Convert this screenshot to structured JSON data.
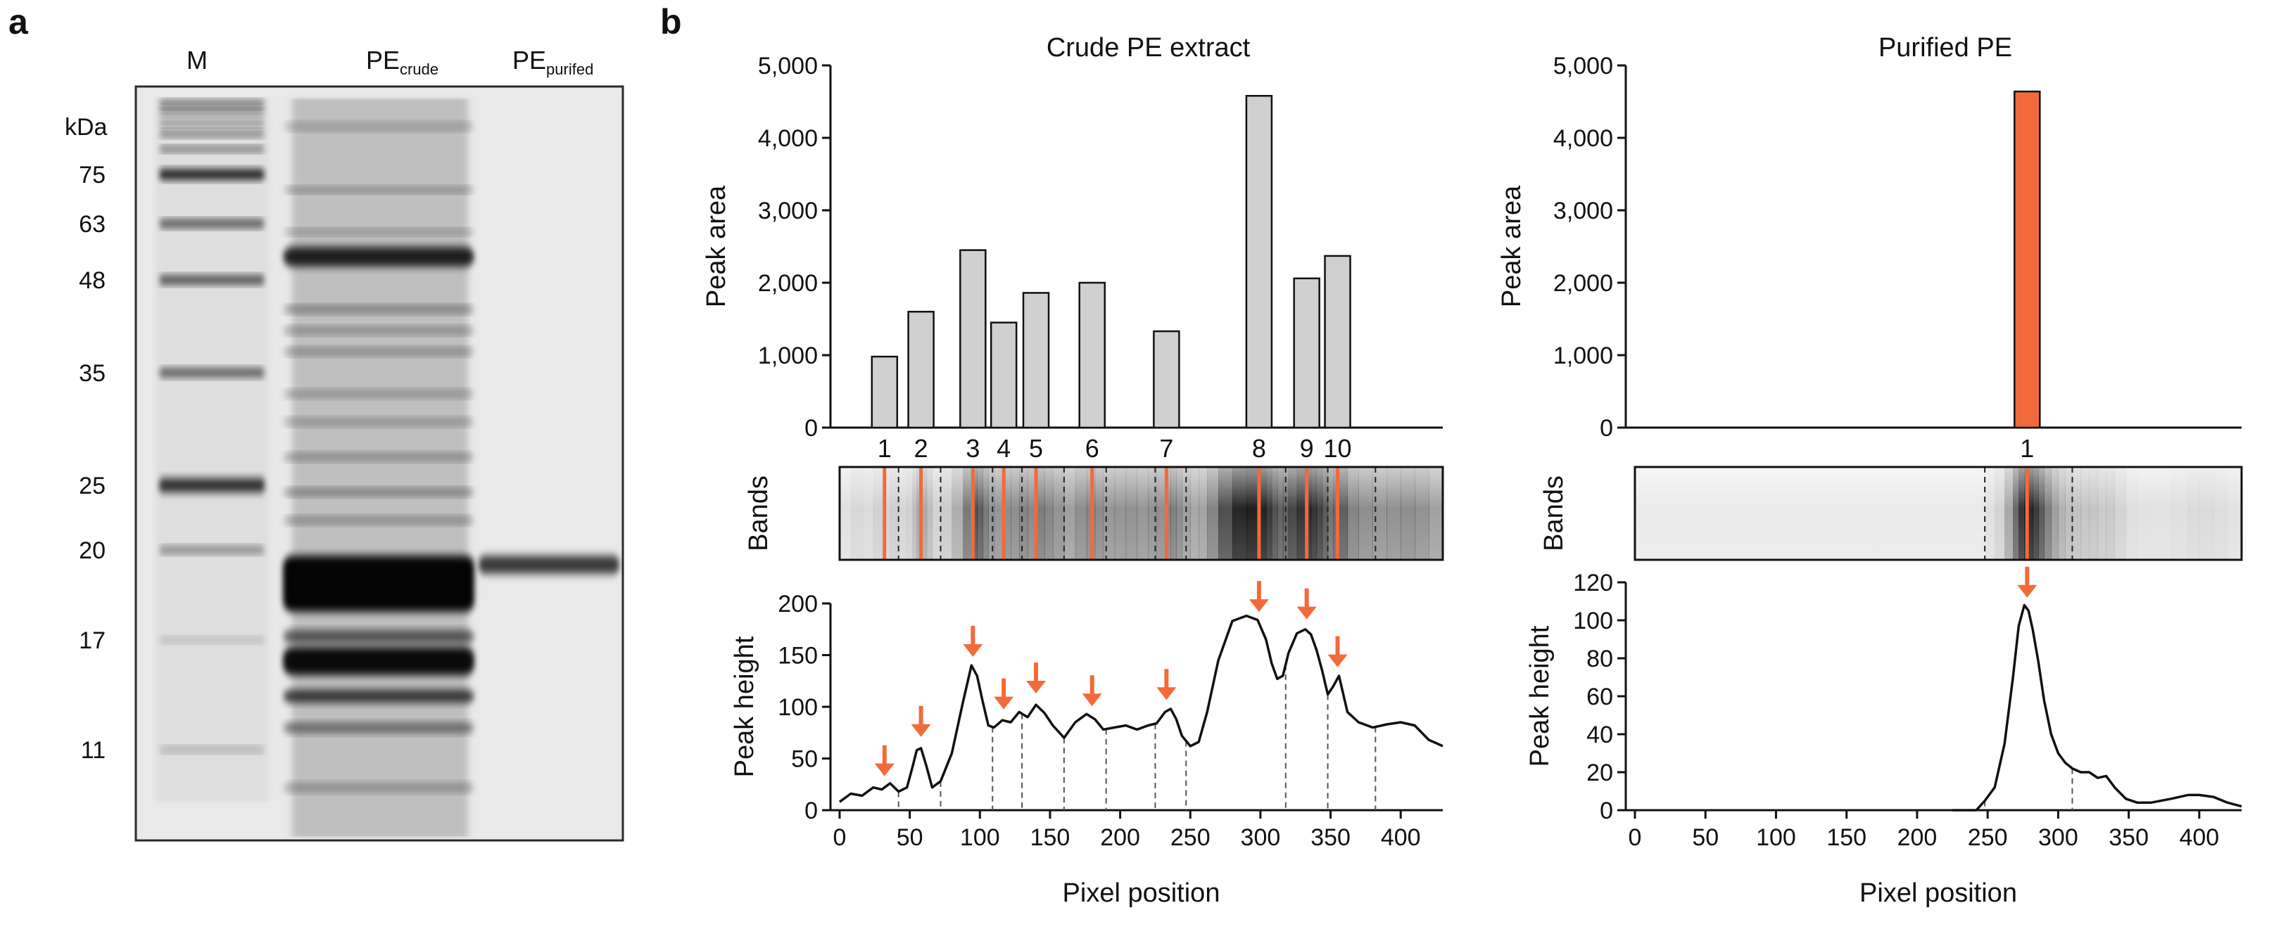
{
  "panel_a": {
    "letter": "a",
    "lanes": [
      {
        "main": "M",
        "sub": ""
      },
      {
        "main": "PE",
        "sub": "crude"
      },
      {
        "main": "PE",
        "sub": "purifed"
      }
    ],
    "unit": "kDa",
    "markers": [
      {
        "label": "75",
        "kda": 75
      },
      {
        "label": "63",
        "kda": 63
      },
      {
        "label": "48",
        "kda": 48
      },
      {
        "label": "35",
        "kda": 35
      },
      {
        "label": "25",
        "kda": 25
      },
      {
        "label": "20",
        "kda": 20
      },
      {
        "label": "17",
        "kda": 17
      },
      {
        "label": "11",
        "kda": 11
      }
    ]
  },
  "panel_b": {
    "letter": "b",
    "bands_label": "Bands"
  },
  "colors": {
    "highlight": "#f26a3a",
    "bar_gray": "#cfd0cf",
    "line": "#111111"
  },
  "chart_data": [
    {
      "id": "crude-area",
      "type": "bar",
      "title": "Crude PE extract",
      "xlabel": "",
      "ylabel": "Peak area",
      "ylim": [
        0,
        5000
      ],
      "yticks": [
        0,
        1000,
        2000,
        3000,
        4000,
        5000
      ],
      "ytick_labels": [
        "0",
        "1,000",
        "2,000",
        "3,000",
        "4,000",
        "5,000"
      ],
      "categories": [
        "1",
        "2",
        "3",
        "4",
        "5",
        "6",
        "7",
        "8",
        "9",
        "10"
      ],
      "positions": [
        32,
        58,
        95,
        117,
        140,
        180,
        233,
        299,
        333,
        355
      ],
      "values": [
        980,
        1600,
        2450,
        1450,
        1860,
        2000,
        1330,
        4580,
        2060,
        2370
      ]
    },
    {
      "id": "crude-profile",
      "type": "line",
      "xlabel": "Pixel position",
      "ylabel": "Peak height",
      "xlim": [
        0,
        430
      ],
      "ylim": [
        0,
        200
      ],
      "xticks": [
        0,
        50,
        100,
        150,
        200,
        250,
        300,
        350,
        400
      ],
      "yticks": [
        0,
        50,
        100,
        150,
        200
      ],
      "x": [
        0,
        8,
        16,
        24,
        30,
        36,
        42,
        48,
        52,
        55,
        58,
        62,
        66,
        72,
        80,
        88,
        94,
        98,
        102,
        106,
        110,
        116,
        122,
        128,
        134,
        140,
        146,
        152,
        160,
        168,
        176,
        182,
        188,
        196,
        204,
        212,
        220,
        226,
        232,
        236,
        240,
        244,
        250,
        256,
        262,
        270,
        280,
        290,
        298,
        304,
        308,
        312,
        316,
        320,
        326,
        332,
        336,
        340,
        344,
        348,
        352,
        356,
        362,
        370,
        380,
        390,
        400,
        410,
        420,
        430
      ],
      "y": [
        8,
        16,
        14,
        22,
        20,
        26,
        18,
        22,
        42,
        58,
        60,
        42,
        22,
        28,
        55,
        105,
        140,
        130,
        105,
        82,
        80,
        87,
        85,
        95,
        90,
        102,
        94,
        82,
        70,
        85,
        93,
        88,
        78,
        80,
        82,
        78,
        82,
        84,
        95,
        98,
        88,
        72,
        62,
        66,
        95,
        145,
        183,
        188,
        184,
        165,
        142,
        127,
        130,
        152,
        171,
        175,
        170,
        155,
        135,
        112,
        120,
        130,
        95,
        85,
        80,
        83,
        85,
        82,
        68,
        62
      ],
      "arrows_x": [
        32,
        58,
        95,
        117,
        140,
        180,
        233,
        299,
        333,
        355
      ],
      "dashed_x": [
        42,
        72,
        109,
        130,
        160,
        190,
        225,
        247,
        318,
        348,
        382
      ]
    },
    {
      "id": "purified-area",
      "type": "bar",
      "title": "Purified PE",
      "xlabel": "",
      "ylabel": "Peak area",
      "ylim": [
        0,
        5000
      ],
      "yticks": [
        0,
        1000,
        2000,
        3000,
        4000,
        5000
      ],
      "ytick_labels": [
        "0",
        "1,000",
        "2,000",
        "3,000",
        "4,000",
        "5,000"
      ],
      "categories": [
        "1"
      ],
      "positions": [
        278
      ],
      "values": [
        4640
      ]
    },
    {
      "id": "purified-profile",
      "type": "line",
      "xlabel": "Pixel position",
      "ylabel": "Peak height",
      "xlim": [
        0,
        430
      ],
      "ylim": [
        0,
        120
      ],
      "xticks": [
        0,
        50,
        100,
        150,
        200,
        250,
        300,
        350,
        400
      ],
      "yticks": [
        0,
        20,
        40,
        60,
        80,
        100,
        120
      ],
      "x": [
        225,
        235,
        242,
        248,
        255,
        262,
        268,
        272,
        276,
        279,
        282,
        286,
        290,
        295,
        300,
        305,
        310,
        316,
        322,
        328,
        334,
        340,
        348,
        356,
        366,
        380,
        392,
        400,
        410,
        420,
        430
      ],
      "y": [
        0,
        0,
        0,
        5,
        12,
        35,
        70,
        97,
        108,
        105,
        95,
        78,
        58,
        40,
        30,
        25,
        22,
        20,
        20,
        17,
        18,
        12,
        6,
        4,
        4,
        6,
        8,
        8,
        7,
        4,
        2
      ],
      "arrows_x": [
        278
      ],
      "dashed_x": [
        248,
        310
      ]
    }
  ]
}
